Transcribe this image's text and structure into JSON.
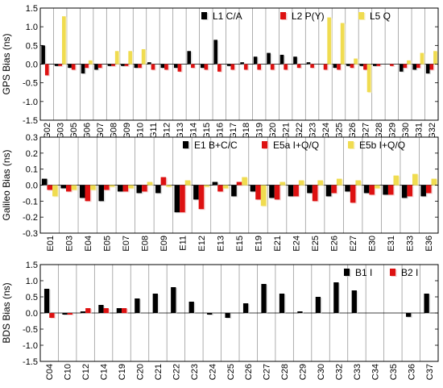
{
  "chart_data": [
    {
      "type": "bar",
      "ylabel": "GPS Bias (ns)",
      "ylim": [
        -1.5,
        1.5
      ],
      "yticks": [
        1.5,
        1.0,
        0.5,
        0.0,
        -0.5,
        -1.0,
        -1.5
      ],
      "grid": "vertical",
      "legend": "top-right",
      "categories": [
        "G02",
        "G03",
        "G05",
        "G06",
        "G07",
        "G08",
        "G09",
        "G10",
        "G11",
        "G12",
        "G13",
        "G14",
        "G15",
        "G16",
        "G17",
        "G18",
        "G19",
        "G20",
        "G21",
        "G22",
        "G23",
        "G24",
        "G25",
        "G26",
        "G27",
        "G28",
        "G29",
        "G30",
        "G31",
        "G32"
      ],
      "series": [
        {
          "name": "L1 C/A",
          "color": "#000000",
          "values": [
            0.5,
            -0.05,
            -0.1,
            -0.25,
            -0.15,
            -0.05,
            -0.05,
            -0.1,
            0.05,
            -0.1,
            -0.1,
            0.35,
            -0.1,
            0.65,
            -0.05,
            0.05,
            0.2,
            0.3,
            0.25,
            0.2,
            0.05,
            0.0,
            -0.1,
            -0.05,
            -0.05,
            -0.05,
            0.0,
            -0.2,
            -0.15,
            -0.25
          ]
        },
        {
          "name": "L2 P(Y)",
          "color": "#dd1111",
          "values": [
            -0.3,
            -0.05,
            -0.15,
            -0.1,
            -0.1,
            -0.05,
            -0.05,
            -0.1,
            -0.15,
            -0.15,
            -0.2,
            -0.1,
            -0.15,
            -0.2,
            -0.15,
            -0.15,
            -0.15,
            -0.15,
            -0.15,
            -0.1,
            -0.1,
            -0.15,
            -0.15,
            -0.1,
            -0.15,
            -0.05,
            -0.05,
            -0.1,
            -0.1,
            -0.15
          ]
        },
        {
          "name": "L5 Q",
          "color": "#f0dc50",
          "values": [
            0.0,
            1.28,
            0.0,
            0.1,
            0.0,
            0.35,
            0.35,
            0.4,
            0.0,
            0.0,
            0.0,
            0.0,
            0.0,
            0.0,
            0.0,
            0.0,
            0.0,
            0.0,
            0.0,
            0.0,
            0.0,
            1.25,
            1.1,
            0.15,
            -0.75,
            0.0,
            0.0,
            0.1,
            0.3,
            0.35
          ]
        }
      ]
    },
    {
      "type": "bar",
      "ylabel": "Galileo Bias (ns)",
      "ylim": [
        -0.3,
        0.3
      ],
      "yticks": [
        0.3,
        0.2,
        0.1,
        0.0,
        -0.1,
        -0.2,
        -0.3
      ],
      "grid": "vertical",
      "legend": "top-right",
      "categories": [
        "E01",
        "E03",
        "E04",
        "E05",
        "E07",
        "E08",
        "E09",
        "E11",
        "E12",
        "E13",
        "E15",
        "E19",
        "E21",
        "E24",
        "E25",
        "E26",
        "E27",
        "E30",
        "E31",
        "E33",
        "E36"
      ],
      "series": [
        {
          "name": "E1 B+C/C",
          "color": "#000000",
          "values": [
            0.04,
            -0.02,
            -0.08,
            -0.1,
            -0.04,
            -0.05,
            -0.05,
            -0.17,
            -0.09,
            0.02,
            -0.07,
            -0.04,
            -0.08,
            -0.07,
            -0.05,
            -0.07,
            -0.04,
            -0.05,
            -0.06,
            -0.08,
            -0.07
          ]
        },
        {
          "name": "E5a I+Q/Q",
          "color": "#dd1111",
          "values": [
            -0.03,
            -0.04,
            -0.1,
            -0.03,
            -0.04,
            -0.04,
            0.05,
            -0.17,
            -0.15,
            -0.04,
            0.02,
            -0.09,
            -0.09,
            -0.07,
            -0.1,
            -0.05,
            -0.11,
            -0.06,
            -0.06,
            -0.07,
            -0.05
          ]
        },
        {
          "name": "E5b I+Q/Q",
          "color": "#f0dc50",
          "values": [
            -0.07,
            -0.03,
            -0.03,
            -0.01,
            -0.02,
            0.02,
            -0.01,
            0.03,
            -0.01,
            -0.02,
            0.05,
            -0.13,
            0.02,
            0.03,
            0.03,
            0.04,
            0.03,
            -0.02,
            0.06,
            0.07,
            0.04
          ]
        }
      ]
    },
    {
      "type": "bar",
      "ylabel": "BDS Bias (ns)",
      "ylim": [
        -1.5,
        1.5
      ],
      "yticks": [
        1.5,
        1.0,
        0.5,
        0.0,
        -0.5,
        -1.0,
        -1.5
      ],
      "grid": "vertical",
      "legend": "top-right",
      "categories": [
        "C04",
        "C10",
        "C12",
        "C14",
        "C19",
        "C20",
        "C21",
        "C22",
        "C23",
        "C24",
        "C25",
        "C26",
        "C27",
        "C28",
        "C29",
        "C30",
        "C32",
        "C33",
        "C34",
        "C35",
        "C36",
        "C37"
      ],
      "series": [
        {
          "name": "B1 I",
          "color": "#000000",
          "values": [
            0.75,
            -0.05,
            0.05,
            0.25,
            0.15,
            0.45,
            0.6,
            0.8,
            0.35,
            -0.05,
            -0.15,
            0.3,
            0.9,
            0.6,
            0.05,
            0.5,
            0.95,
            0.7,
            0.0,
            0.0,
            -0.12,
            0.6
          ]
        },
        {
          "name": "B2 I",
          "color": "#dd1111",
          "values": [
            -0.15,
            -0.05,
            0.15,
            0.15,
            0.15,
            0.0,
            0.0,
            0.0,
            0.0,
            0.0,
            0.0,
            0.0,
            0.0,
            0.0,
            0.0,
            0.0,
            0.0,
            0.0,
            0.0,
            0.0,
            0.0,
            0.0
          ]
        }
      ]
    }
  ]
}
